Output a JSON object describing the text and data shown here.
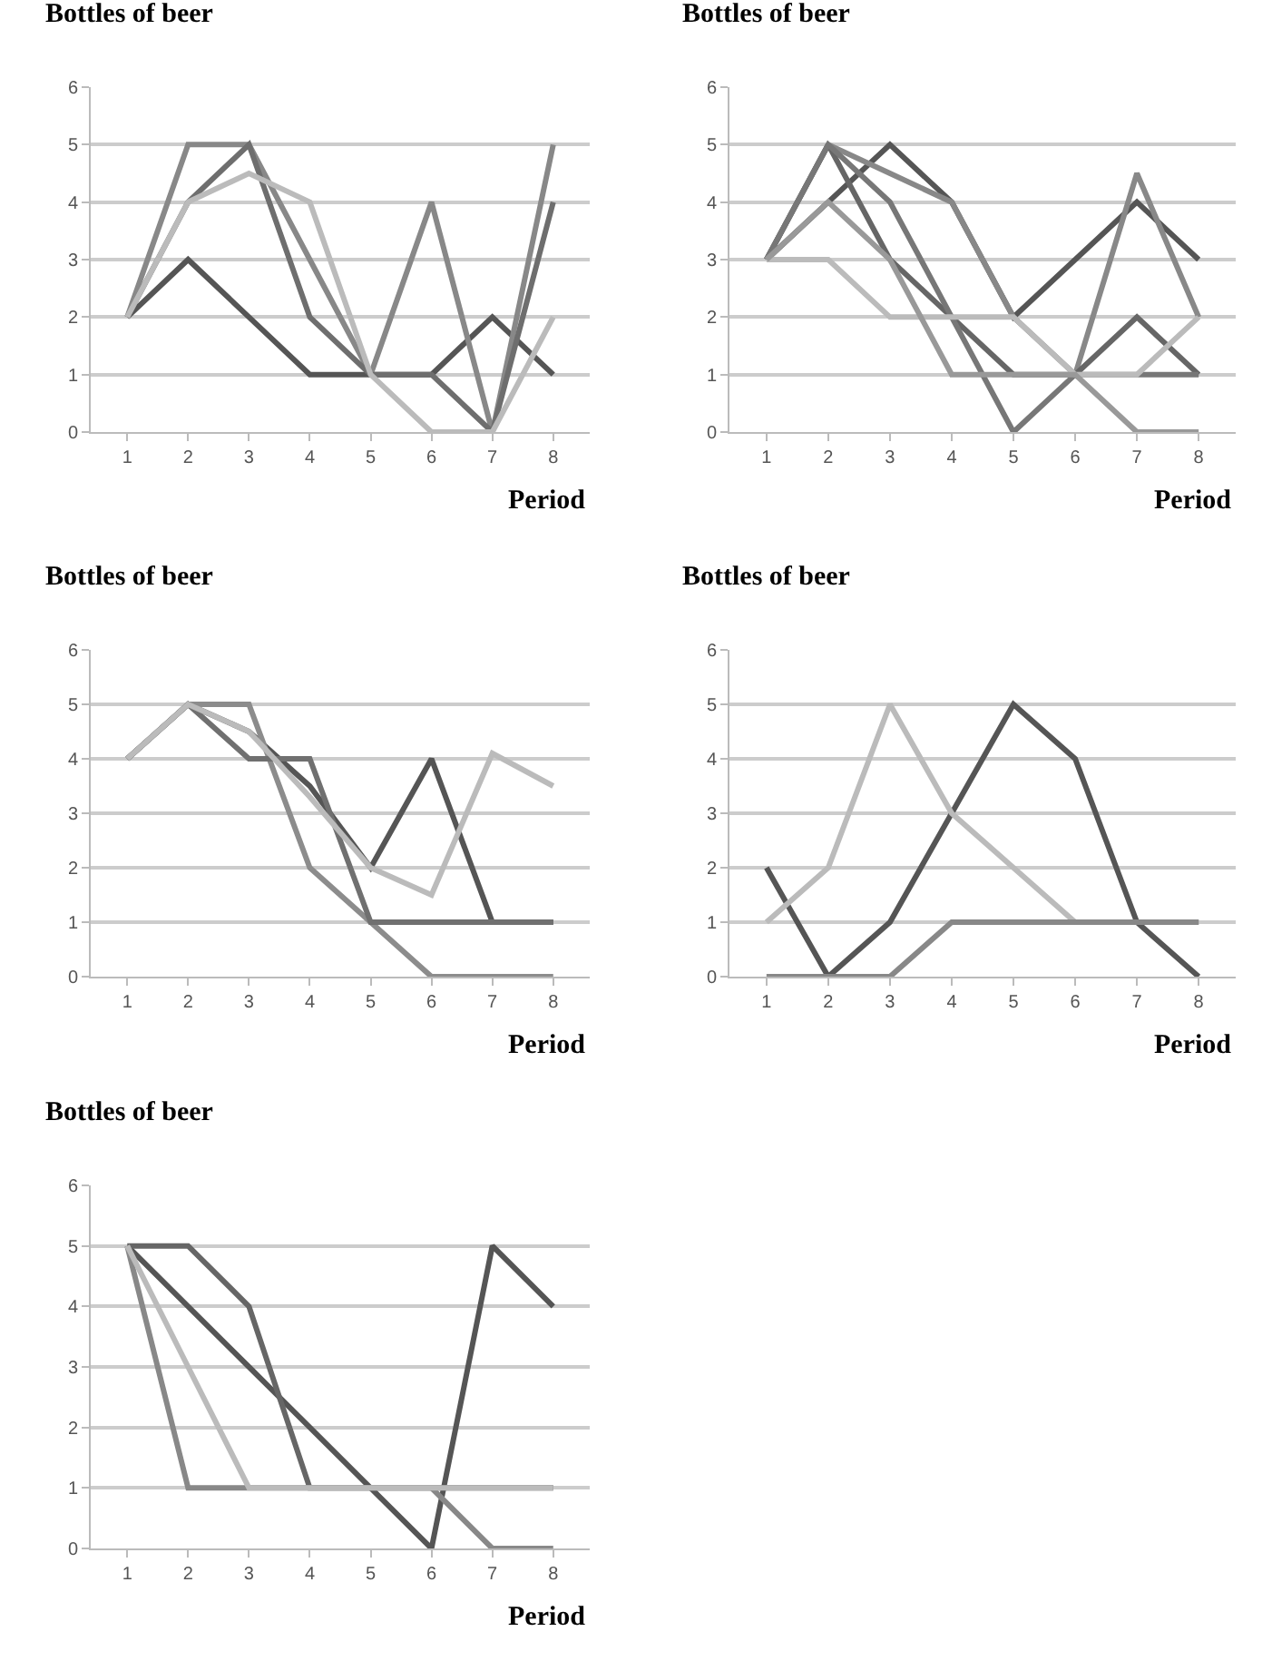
{
  "chart_data": [
    {
      "type": "line",
      "ylabel": "Bottles of beer",
      "xlabel": "Period",
      "categories": [
        "1",
        "2",
        "3",
        "4",
        "5",
        "6",
        "7",
        "8"
      ],
      "ylim": [
        0,
        6
      ],
      "yticks": [
        0,
        1,
        2,
        3,
        4,
        5,
        6
      ],
      "grid": "y",
      "line_style": "solid",
      "series": [
        {
          "color": "#555555",
          "values": [
            2,
            3,
            2,
            1,
            1,
            1,
            2,
            1
          ]
        },
        {
          "color": "#888888",
          "values": [
            2,
            5,
            5,
            3,
            1,
            4,
            0,
            5
          ]
        },
        {
          "color": "#6e6e6e",
          "values": [
            2,
            4,
            5,
            2,
            1,
            1,
            0,
            4
          ]
        },
        {
          "color": "#bbbbbb",
          "values": [
            2,
            4,
            4.5,
            4,
            1,
            0,
            0,
            2
          ]
        }
      ]
    },
    {
      "type": "line",
      "ylabel": "Bottles of beer",
      "xlabel": "Period",
      "categories": [
        "1",
        "2",
        "3",
        "4",
        "5",
        "6",
        "7",
        "8"
      ],
      "ylim": [
        0,
        6
      ],
      "yticks": [
        0,
        1,
        2,
        3,
        4,
        5,
        6
      ],
      "grid": "y",
      "line_style": "solid",
      "series": [
        {
          "color": "#555555",
          "values": [
            3,
            4,
            5,
            4,
            2,
            3,
            4,
            3
          ]
        },
        {
          "color": "#888888",
          "values": [
            3,
            5,
            4.5,
            4,
            2,
            1,
            4.5,
            2
          ]
        },
        {
          "color": "#666666",
          "values": [
            3,
            5,
            3,
            2,
            1,
            1,
            2,
            1
          ]
        },
        {
          "color": "#777777",
          "values": [
            3,
            5,
            4,
            2,
            0,
            1,
            1,
            1
          ]
        },
        {
          "color": "#bbbbbb",
          "values": [
            3,
            3,
            2,
            2,
            2,
            1,
            1,
            2
          ]
        },
        {
          "color": "#999999",
          "values": [
            3,
            4,
            3,
            1,
            1,
            1,
            0,
            0
          ]
        }
      ]
    },
    {
      "type": "line",
      "ylabel": "Bottles of beer",
      "xlabel": "Period",
      "categories": [
        "1",
        "2",
        "3",
        "4",
        "5",
        "6",
        "7",
        "8"
      ],
      "ylim": [
        0,
        6
      ],
      "yticks": [
        0,
        1,
        2,
        3,
        4,
        5,
        6
      ],
      "grid": "y",
      "line_style": "solid",
      "series": [
        {
          "color": "#555555",
          "values": [
            4,
            5,
            4.5,
            3.5,
            2,
            4,
            1,
            1
          ]
        },
        {
          "color": "#8c8c8c",
          "values": [
            4,
            5,
            5,
            2,
            1,
            0,
            0,
            0
          ]
        },
        {
          "color": "#707070",
          "values": [
            4,
            5,
            4,
            4,
            1,
            1,
            1,
            1
          ]
        },
        {
          "color": "#bbbbbb",
          "values": [
            4,
            5,
            4.5,
            3.3,
            2,
            1.5,
            4.1,
            3.5
          ]
        }
      ]
    },
    {
      "type": "line",
      "ylabel": "Bottles of beer",
      "xlabel": "Period",
      "categories": [
        "1",
        "2",
        "3",
        "4",
        "5",
        "6",
        "7",
        "8"
      ],
      "ylim": [
        0,
        6
      ],
      "yticks": [
        0,
        1,
        2,
        3,
        4,
        5,
        6
      ],
      "grid": "y",
      "line_style": "solid",
      "series": [
        {
          "color": "#555555",
          "values": [
            2,
            0,
            1,
            3,
            5,
            4,
            1,
            0
          ]
        },
        {
          "color": "#bbbbbb",
          "values": [
            1,
            2,
            5,
            3,
            2,
            1,
            1,
            1
          ]
        },
        {
          "color": "#888888",
          "values": [
            0,
            0,
            0,
            1,
            1,
            1,
            1,
            1
          ]
        }
      ]
    },
    {
      "type": "line",
      "ylabel": "Bottles of beer",
      "xlabel": "Period",
      "categories": [
        "1",
        "2",
        "3",
        "4",
        "5",
        "6",
        "7",
        "8"
      ],
      "ylim": [
        0,
        6
      ],
      "yticks": [
        0,
        1,
        2,
        3,
        4,
        5,
        6
      ],
      "grid": "y",
      "line_style": "solid",
      "series": [
        {
          "color": "#555555",
          "values": [
            5,
            4,
            3,
            2,
            1,
            0,
            5,
            4
          ]
        },
        {
          "color": "#666666",
          "values": [
            5,
            5,
            4,
            1,
            1,
            1,
            1,
            1
          ]
        },
        {
          "color": "#888888",
          "values": [
            5,
            1,
            1,
            1,
            1,
            1,
            0,
            0
          ]
        },
        {
          "color": "#bbbbbb",
          "values": [
            5,
            3,
            1,
            1,
            1,
            1,
            1,
            1
          ]
        }
      ]
    }
  ]
}
